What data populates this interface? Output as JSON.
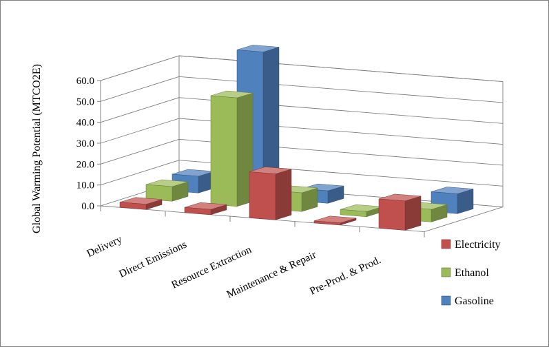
{
  "window": {
    "background": "#ffffff",
    "border_color": "#7f7f7f"
  },
  "chart_data": {
    "type": "bar",
    "subtype": "3d-column",
    "title": "",
    "ylabel": "Global Warming Potential (MTCO2E)",
    "xlabel": "",
    "grid": true,
    "legend_position": "right",
    "y_axis": {
      "min": 0,
      "max": 60,
      "step": 10,
      "tick_labels": [
        "0.0",
        "10.0",
        "20.0",
        "30.0",
        "40.0",
        "50.0",
        "60.0"
      ]
    },
    "categories": [
      "Delivery",
      "Direct Emissions",
      "Resource Extraction",
      "Maintenance & Repair",
      "Pre-Prod. & Prod."
    ],
    "series": [
      {
        "name": "Electricity",
        "color": "#C0504D",
        "values": [
          2.5,
          2.5,
          22.0,
          1.0,
          14.0
        ]
      },
      {
        "name": "Ethanol",
        "color": "#9BBB59",
        "values": [
          7.0,
          52.0,
          9.0,
          2.5,
          6.0
        ]
      },
      {
        "name": "Gasoline",
        "color": "#4F81BD",
        "values": [
          8.0,
          70.0,
          6.0,
          0.0,
          9.5
        ]
      }
    ],
    "colors": {
      "gridline": "#808080",
      "axis": "#808080"
    }
  }
}
